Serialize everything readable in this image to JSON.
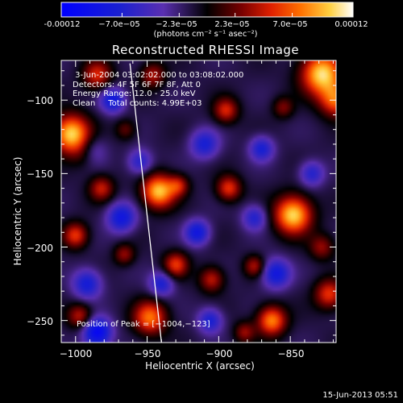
{
  "chart_data": {
    "type": "heatmap",
    "title": "Reconstructed RHESSI Image",
    "xlabel": "Heliocentric X (arcsec)",
    "ylabel": "Heliocentric Y (arcsec)",
    "xlim": [
      -1010,
      -818
    ],
    "ylim": [
      -265,
      -73
    ],
    "xticks": [
      -1000,
      -950,
      -900,
      -850
    ],
    "yticks": [
      -100,
      -150,
      -200,
      -250
    ],
    "xtick_labels": [
      "−1000",
      "−950",
      "−900",
      "−850"
    ],
    "ytick_labels": [
      "−100",
      "−150",
      "−200",
      "−250"
    ],
    "colorbar": {
      "range": [
        -0.00012,
        0.00012
      ],
      "ticks": [
        -0.00012,
        -7e-05,
        -2.3e-05,
        2.3e-05,
        7e-05,
        0.00012
      ],
      "tick_labels": [
        "-0.00012",
        "−7.0e−05",
        "−2.3e−05",
        "2.3e−05",
        "7.0e−05",
        "0.00012"
      ],
      "units": "(photons cm⁻² s⁻¹ asec⁻²)"
    },
    "annotations": [
      " 3-Jun-2004 03:02:02.000 to 03:08:02.000",
      "Detectors: 4F 5F 6F 7F 8F, Att 0",
      "Energy Range: 12.0 - 25.0 keV",
      "Clean     Total counts: 4.99E+03"
    ],
    "peak_label": "Position of Peak = [−1004,−123]",
    "peak": [
      -1004,
      -123
    ],
    "limb_line": [
      [
        -962,
        -75
      ],
      [
        -940,
        -265
      ]
    ],
    "hotspots": [
      {
        "x": -1003,
        "y": -123,
        "a": 1.0,
        "s": 9
      },
      {
        "x": -992,
        "y": -136,
        "a": 0.6,
        "s": 7
      },
      {
        "x": -828,
        "y": -82,
        "a": 1.0,
        "s": 10
      },
      {
        "x": -818,
        "y": -100,
        "a": 0.7,
        "s": 8
      },
      {
        "x": -985,
        "y": -83,
        "a": 0.55,
        "s": 7
      },
      {
        "x": -946,
        "y": -83,
        "a": 0.45,
        "s": 6
      },
      {
        "x": -965,
        "y": -120,
        "a": 0.3,
        "s": 5
      },
      {
        "x": -895,
        "y": -107,
        "a": 0.55,
        "s": 6
      },
      {
        "x": -855,
        "y": -105,
        "a": 0.35,
        "s": 5
      },
      {
        "x": -942,
        "y": -162,
        "a": 0.95,
        "s": 8
      },
      {
        "x": -928,
        "y": -158,
        "a": 0.45,
        "s": 5
      },
      {
        "x": -893,
        "y": -160,
        "a": 0.6,
        "s": 6
      },
      {
        "x": -848,
        "y": -178,
        "a": 1.0,
        "s": 9
      },
      {
        "x": -828,
        "y": -200,
        "a": 0.4,
        "s": 6
      },
      {
        "x": -982,
        "y": -160,
        "a": 0.5,
        "s": 6
      },
      {
        "x": -930,
        "y": -212,
        "a": 0.6,
        "s": 6
      },
      {
        "x": -1000,
        "y": -192,
        "a": 0.6,
        "s": 6
      },
      {
        "x": -966,
        "y": -205,
        "a": 0.4,
        "s": 5
      },
      {
        "x": -905,
        "y": -222,
        "a": 0.5,
        "s": 6
      },
      {
        "x": -875,
        "y": -213,
        "a": 0.45,
        "s": 5
      },
      {
        "x": -948,
        "y": -248,
        "a": 0.75,
        "s": 8
      },
      {
        "x": -863,
        "y": -250,
        "a": 0.8,
        "s": 7
      },
      {
        "x": -823,
        "y": -232,
        "a": 0.6,
        "s": 7
      },
      {
        "x": -997,
        "y": -247,
        "a": 0.5,
        "s": 6
      },
      {
        "x": -882,
        "y": -258,
        "a": 0.4,
        "s": 5
      },
      {
        "x": -990,
        "y": -135,
        "a": -0.7,
        "s": 7
      },
      {
        "x": -974,
        "y": -100,
        "a": -0.6,
        "s": 6
      },
      {
        "x": -910,
        "y": -130,
        "a": -0.5,
        "s": 7
      },
      {
        "x": -870,
        "y": -133,
        "a": -0.5,
        "s": 6
      },
      {
        "x": -955,
        "y": -142,
        "a": -0.45,
        "s": 6
      },
      {
        "x": -968,
        "y": -180,
        "a": -0.6,
        "s": 7
      },
      {
        "x": -915,
        "y": -190,
        "a": -0.6,
        "s": 6
      },
      {
        "x": -875,
        "y": -180,
        "a": -0.45,
        "s": 6
      },
      {
        "x": -992,
        "y": -225,
        "a": -0.55,
        "s": 7
      },
      {
        "x": -940,
        "y": -225,
        "a": -0.5,
        "s": 6
      },
      {
        "x": -860,
        "y": -218,
        "a": -0.6,
        "s": 7
      },
      {
        "x": -985,
        "y": -258,
        "a": -0.8,
        "s": 7
      },
      {
        "x": -906,
        "y": -250,
        "a": -0.5,
        "s": 6
      },
      {
        "x": -835,
        "y": -150,
        "a": -0.45,
        "s": 6
      }
    ]
  },
  "footer_date": "15-Jun-2013 05:51"
}
